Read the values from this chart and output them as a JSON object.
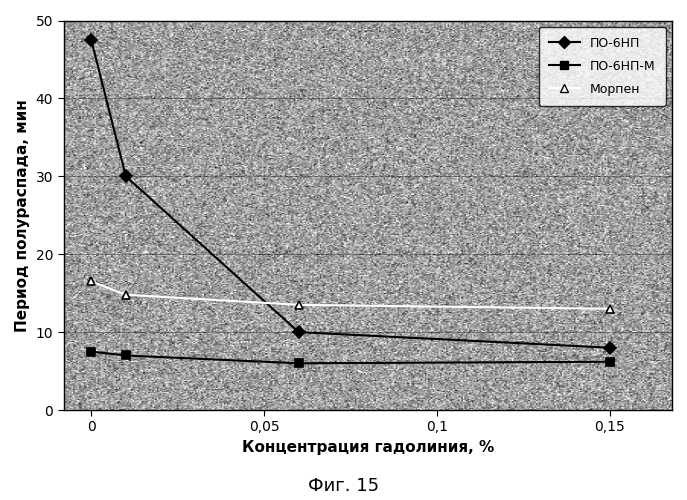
{
  "series": [
    {
      "label": "ПО-6НП",
      "x": [
        0,
        0.01,
        0.06,
        0.15
      ],
      "y": [
        47.5,
        30.0,
        10.0,
        8.0
      ],
      "line_color": "#000000",
      "marker": "D",
      "markersize": 6,
      "linewidth": 1.5,
      "linestyle": "-",
      "markerfacecolor": "#000000",
      "markeredgecolor": "#000000"
    },
    {
      "label": "ПО-6НП-М",
      "x": [
        0,
        0.01,
        0.06,
        0.15
      ],
      "y": [
        7.5,
        7.0,
        6.0,
        6.2
      ],
      "line_color": "#000000",
      "marker": "s",
      "markersize": 6,
      "linewidth": 1.5,
      "linestyle": "-",
      "markerfacecolor": "#000000",
      "markeredgecolor": "#000000"
    },
    {
      "label": "Морпен",
      "x": [
        0,
        0.01,
        0.06,
        0.15
      ],
      "y": [
        16.5,
        14.8,
        13.5,
        13.0
      ],
      "line_color": "#ffffff",
      "marker": "^",
      "markersize": 6,
      "linewidth": 1.5,
      "linestyle": "-",
      "markerfacecolor": "#ffffff",
      "markeredgecolor": "#000000"
    }
  ],
  "xlabel": "Концентрация гадолиния, %",
  "ylabel": "Период полураспада, мин",
  "xlim": [
    -0.008,
    0.168
  ],
  "ylim": [
    0,
    50
  ],
  "xticks": [
    0,
    0.05,
    0.1,
    0.15
  ],
  "xticklabels": [
    "0",
    "0,05",
    "0,1",
    "0,15"
  ],
  "yticks": [
    0,
    10,
    20,
    30,
    40,
    50
  ],
  "grid_color": "#000000",
  "grid_alpha": 0.5,
  "grid_linewidth": 0.5,
  "noise_mean": 160,
  "noise_std": 40,
  "fig_background": "#ffffff",
  "caption": "Фиг. 15",
  "legend_loc": "upper right",
  "legend_fontsize": 9,
  "xlabel_fontsize": 11,
  "ylabel_fontsize": 11,
  "tick_fontsize": 10
}
